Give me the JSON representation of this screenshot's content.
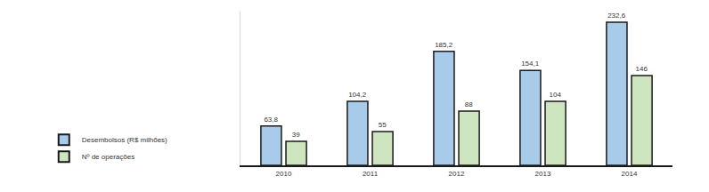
{
  "chart_data": {
    "type": "bar",
    "categories": [
      "2010",
      "2011",
      "2012",
      "2013",
      "2014"
    ],
    "series": [
      {
        "name": "Desembolsos (R$ milhões)",
        "color": "#a8cbea",
        "values": [
          63.8,
          104.2,
          185.2,
          154.1,
          232.6
        ],
        "value_labels": [
          "63,8",
          "104,2",
          "185,2",
          "154,1",
          "232,6"
        ]
      },
      {
        "name": "Nº de operações",
        "color": "#cde6bf",
        "values": [
          39,
          55,
          88,
          104,
          146
        ]
      }
    ],
    "ylim": [
      0,
      250
    ],
    "grid": false,
    "legend": "left",
    "data_labels": true,
    "tick_labels": "x"
  }
}
